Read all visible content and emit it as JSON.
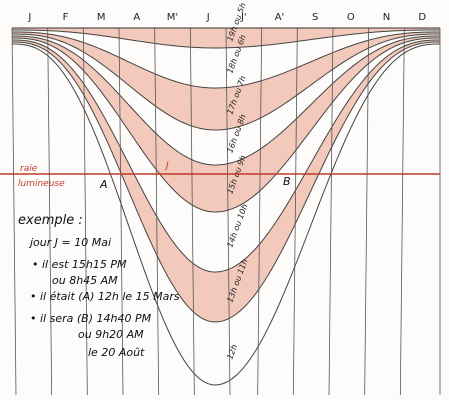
{
  "months": [
    "J",
    "F",
    "M",
    "A",
    "M'",
    "J",
    "J'",
    "A'",
    "S",
    "O",
    "N",
    "D"
  ],
  "hours": [
    "19h ou 5h",
    "18h ou 6h",
    "17h ou 7h",
    "16h ou 8h",
    "15h ou 9h",
    "14h ou 10h",
    "13h ou 11h",
    "12h"
  ],
  "line": {
    "label1": "raie",
    "label2": "lumineuse",
    "a": "A",
    "j": "J",
    "b": "B"
  },
  "example": {
    "title": "exemple :",
    "day": "jour J = 10 Mai",
    "now1": "• il est 15h15 PM",
    "now2": "ou 8h45 AM",
    "past": "• il était (A) 12h le 15 Mars",
    "future1": "• il sera (B) 14h40 PM",
    "future2": "ou 9h20 AM",
    "future3": "le 20 Août"
  }
}
